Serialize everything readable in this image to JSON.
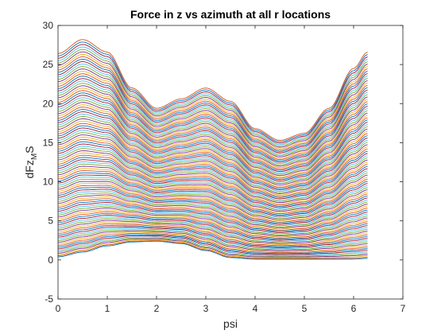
{
  "chart_data": {
    "type": "line",
    "title": "Force in z vs azimuth at all r locations",
    "xlabel": "psi",
    "ylabel_main": "dFz",
    "ylabel_sub": "M",
    "ylabel_tail": "S",
    "xlim": [
      0,
      7
    ],
    "ylim": [
      -5,
      30
    ],
    "xticks": [
      "0",
      "1",
      "2",
      "3",
      "4",
      "5",
      "6",
      "7"
    ],
    "yticks": [
      "-5",
      "0",
      "5",
      "10",
      "15",
      "20",
      "25",
      "30"
    ],
    "grid": false,
    "legend": "none",
    "series_colors": [
      "#0072BD",
      "#D95319",
      "#EDB120",
      "#7E2F8E",
      "#77AC30",
      "#4DBEEE",
      "#A2142F"
    ],
    "x_range": [
      0,
      6.2832
    ],
    "series_count": 100,
    "envelope": {
      "top_series": {
        "psi": [
          0,
          0.5,
          1.0,
          1.5,
          2.0,
          2.5,
          3.0,
          3.5,
          4.0,
          4.5,
          5.0,
          5.5,
          6.0,
          6.2832
        ],
        "values": [
          26.4,
          28.2,
          26.6,
          22.0,
          19.4,
          20.6,
          22.0,
          20.3,
          16.8,
          15.3,
          16.2,
          19.4,
          24.5,
          26.6
        ]
      },
      "bottom_series": {
        "psi": [
          0,
          0.5,
          1.0,
          1.5,
          2.0,
          2.5,
          3.0,
          3.5,
          4.0,
          4.5,
          5.0,
          5.5,
          6.0,
          6.2832
        ],
        "values": [
          0.4,
          1.0,
          1.8,
          2.3,
          2.4,
          2.1,
          1.2,
          0.3,
          0.1,
          0.1,
          0.1,
          0.1,
          0.1,
          0.2
        ]
      }
    }
  }
}
